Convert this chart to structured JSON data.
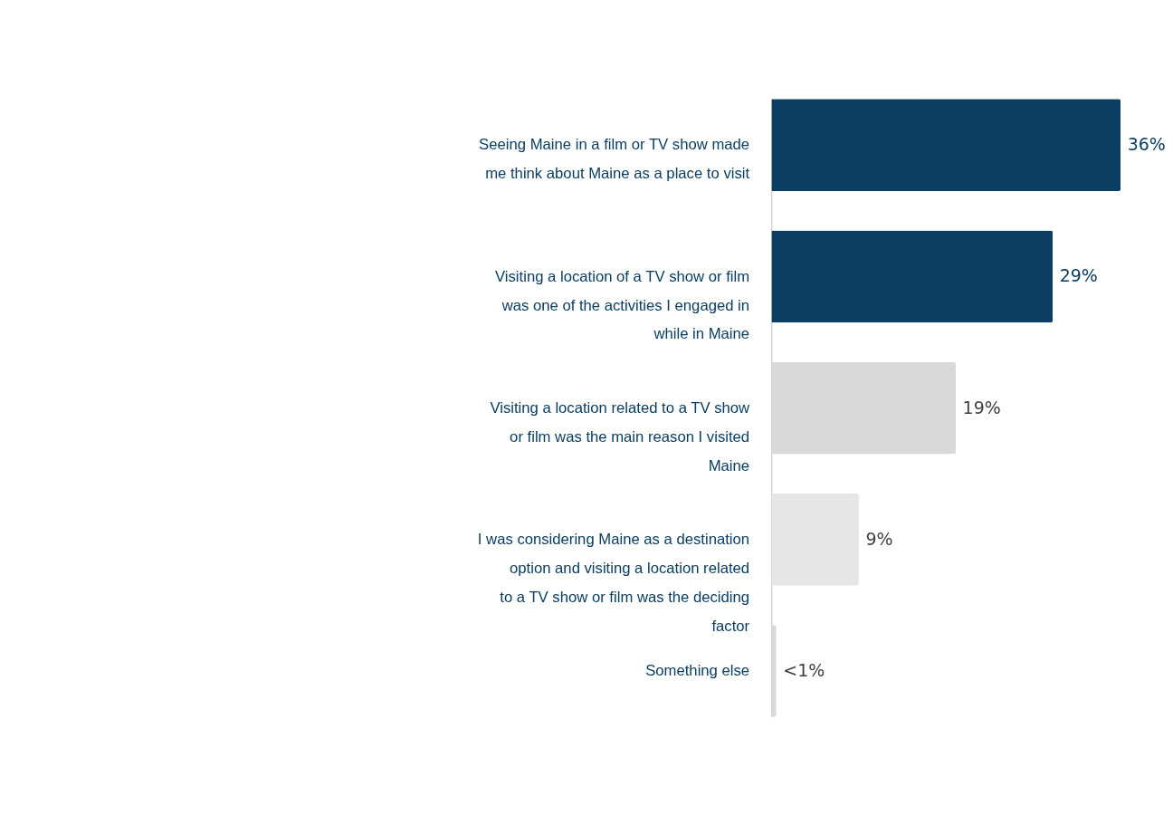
{
  "chart_data": {
    "type": "bar",
    "orientation": "horizontal",
    "categories": [
      "Seeing Maine in a film or TV show made me think about Maine as a place to visit",
      "Visiting a location of a TV show or film was one of the activities I engaged in while in Maine",
      "Visiting a location related to a TV show or film was the main reason I visited Maine",
      "I was considering Maine as a destination option and visiting a location related to a TV show or film was the deciding factor",
      "Something else"
    ],
    "values": [
      36,
      29,
      19,
      9,
      0.5
    ],
    "colors": [
      "#0b3e61",
      "#0b3e61",
      "#d9d9d9",
      "#e6e6e6",
      "#d9d9d9"
    ],
    "value_labels": [
      "36%",
      "29%",
      "19%",
      "9%",
      "<1%"
    ],
    "grid": false
  }
}
